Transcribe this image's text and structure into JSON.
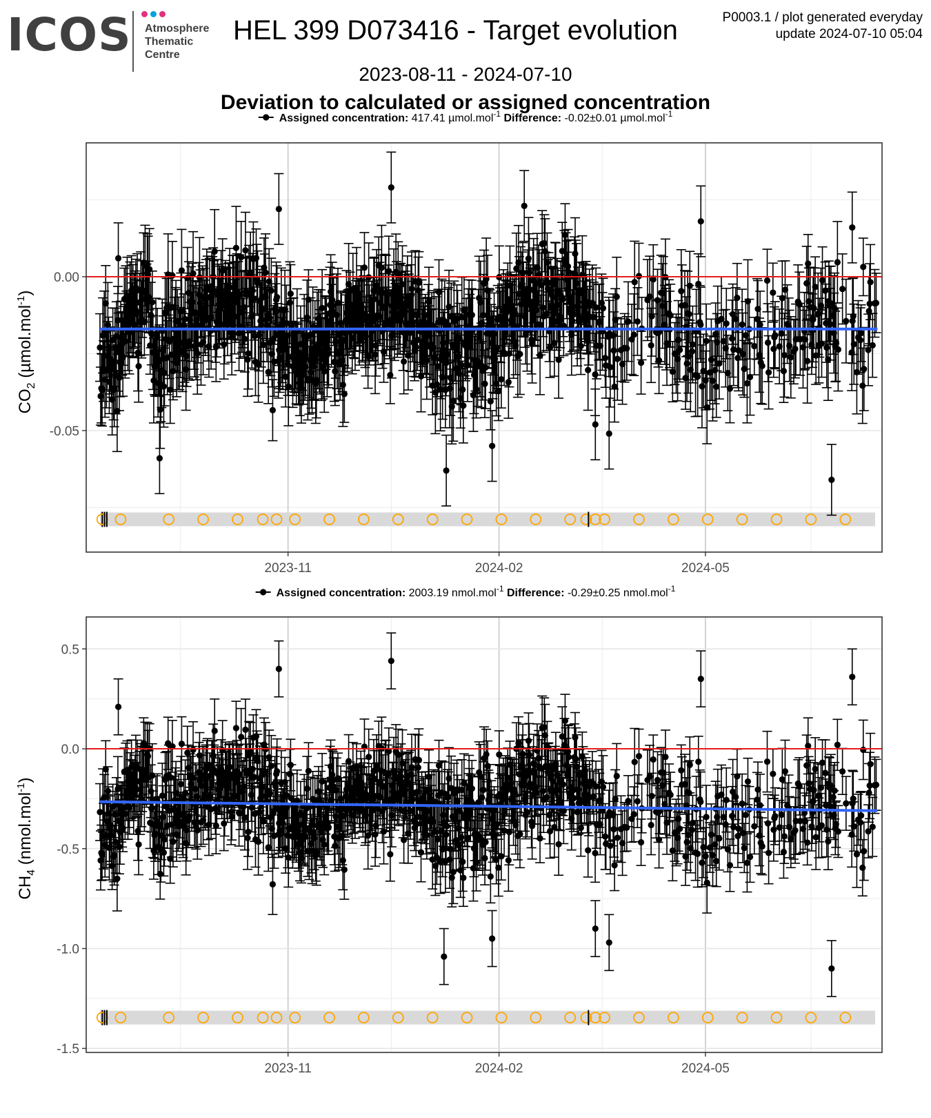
{
  "header": {
    "logo_text": "ICOS",
    "logo_sub": [
      "Atmosphere",
      "Thematic",
      "Centre"
    ],
    "logo_dot_colors": [
      "#e2317e",
      "#00a4e0",
      "#e2317e"
    ],
    "title": "HEL 399 D073416 - Target evolution",
    "product": "P0003.1 / plot generated everyday",
    "update": "update  2024-07-10 05:04",
    "date_range": "2023-08-11 - 2024-07-10",
    "subtitle": "Deviation to calculated or assigned concentration"
  },
  "colors": {
    "points": "#000000",
    "reference_line": "#e41a1c",
    "trend_line": "#3366ff",
    "event_band": "#d9d9d9",
    "event_markers": "#ffa500"
  },
  "chart_data": [
    {
      "type": "scatter",
      "panel": "co2",
      "legend_label": "Assigned concentration:",
      "legend_value": "417.41 µmol.mol",
      "legend_diff_label": "Difference:",
      "legend_diff_value": "-0.02±0.01 µmol.mol",
      "ylabel_species": "CO",
      "ylabel_sub": "2",
      "ylabel_unit": "(µmol.mol",
      "ylim": [
        -0.0895,
        0.0435
      ],
      "yticks": [
        0.0,
        -0.05
      ],
      "ytick_labels": [
        "0.00",
        "-0.05"
      ],
      "xlim": [
        "2023-08-05",
        "2024-07-17"
      ],
      "xticks": [
        "2023-11-01",
        "2024-02-01",
        "2024-05-01"
      ],
      "xtick_labels": [
        "2023-11",
        "2024-02",
        "2024-05"
      ],
      "reference_y": 0.0,
      "trend": {
        "x": [
          "2023-08-11",
          "2024-07-15"
        ],
        "y": [
          -0.017,
          -0.017
        ]
      },
      "error_bar": 0.0115,
      "grid": true,
      "legend_position": "top",
      "outliers": [
        {
          "x": "2023-08-19",
          "y": 0.006
        },
        {
          "x": "2023-09-06",
          "y": -0.059
        },
        {
          "x": "2023-10-28",
          "y": 0.022
        },
        {
          "x": "2023-12-16",
          "y": 0.029
        },
        {
          "x": "2024-01-09",
          "y": -0.063
        },
        {
          "x": "2024-01-29",
          "y": -0.055
        },
        {
          "x": "2024-02-12",
          "y": 0.023
        },
        {
          "x": "2024-03-14",
          "y": -0.048
        },
        {
          "x": "2024-03-20",
          "y": -0.051
        },
        {
          "x": "2024-04-29",
          "y": 0.018
        },
        {
          "x": "2024-06-25",
          "y": -0.066
        },
        {
          "x": "2024-07-04",
          "y": 0.016
        }
      ],
      "events": [
        "2023-08-12",
        "2023-08-13",
        "2023-08-14",
        "2023-08-20",
        "2023-09-10",
        "2023-09-25",
        "2023-10-10",
        "2023-10-21",
        "2023-10-27",
        "2023-11-04",
        "2023-11-19",
        "2023-12-04",
        "2023-12-19",
        "2024-01-03",
        "2024-01-18",
        "2024-02-02",
        "2024-02-17",
        "2024-03-03",
        "2024-03-10",
        "2024-03-11",
        "2024-03-14",
        "2024-03-18",
        "2024-04-02",
        "2024-04-17",
        "2024-05-02",
        "2024-05-17",
        "2024-06-01",
        "2024-06-16",
        "2024-07-01"
      ]
    },
    {
      "type": "scatter",
      "panel": "ch4",
      "legend_label": "Assigned concentration:",
      "legend_value": "2003.19 nmol.mol",
      "legend_diff_label": "Difference:",
      "legend_diff_value": "-0.29±0.25 nmol.mol",
      "ylabel_species": "CH",
      "ylabel_sub": "4",
      "ylabel_unit": "(nmol.mol",
      "ylim": [
        -1.52,
        0.66
      ],
      "yticks": [
        0.5,
        0.0,
        -0.5,
        -1.0,
        -1.5
      ],
      "ytick_labels": [
        "0.5",
        "0.0",
        "-0.5",
        "-1.0",
        "-1.5"
      ],
      "xlim": [
        "2023-08-05",
        "2024-07-17"
      ],
      "xticks": [
        "2023-11-01",
        "2024-02-01",
        "2024-05-01"
      ],
      "xtick_labels": [
        "2023-11",
        "2024-02",
        "2024-05"
      ],
      "reference_y": 0.0,
      "trend": {
        "x": [
          "2023-08-11",
          "2024-07-15"
        ],
        "y": [
          -0.265,
          -0.31
        ]
      },
      "error_bar": 0.14,
      "grid": true,
      "legend_position": "top",
      "outliers": [
        {
          "x": "2023-08-19",
          "y": 0.21
        },
        {
          "x": "2023-10-28",
          "y": 0.4
        },
        {
          "x": "2023-12-16",
          "y": 0.44
        },
        {
          "x": "2024-01-08",
          "y": -1.04
        },
        {
          "x": "2024-01-29",
          "y": -0.95
        },
        {
          "x": "2024-03-14",
          "y": -0.9
        },
        {
          "x": "2024-03-20",
          "y": -0.97
        },
        {
          "x": "2024-04-29",
          "y": 0.35
        },
        {
          "x": "2024-06-25",
          "y": -1.1
        },
        {
          "x": "2024-07-04",
          "y": 0.36
        }
      ],
      "events": [
        "2023-08-12",
        "2023-08-13",
        "2023-08-14",
        "2023-08-20",
        "2023-09-10",
        "2023-09-25",
        "2023-10-10",
        "2023-10-21",
        "2023-10-27",
        "2023-11-04",
        "2023-11-19",
        "2023-12-04",
        "2023-12-19",
        "2024-01-03",
        "2024-01-18",
        "2024-02-02",
        "2024-02-17",
        "2024-03-03",
        "2024-03-10",
        "2024-03-11",
        "2024-03-14",
        "2024-03-18",
        "2024-04-02",
        "2024-04-17",
        "2024-05-02",
        "2024-05-17",
        "2024-06-01",
        "2024-06-16",
        "2024-07-01"
      ]
    }
  ]
}
